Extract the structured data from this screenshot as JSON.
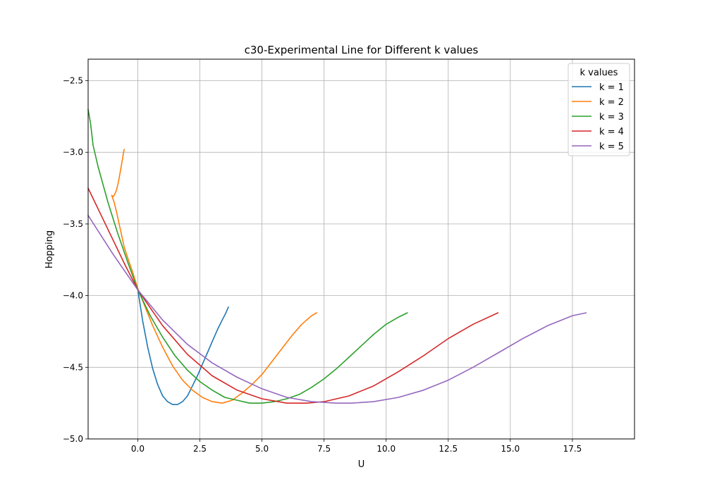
{
  "chart_data": {
    "type": "line",
    "title": "c30-Experimental Line for Different k values",
    "xlabel": "U",
    "ylabel": "Hopping",
    "xlim": [
      -2.0,
      20.0
    ],
    "ylim": [
      -5.0,
      -2.35
    ],
    "xticks": [
      "0.0",
      "2.5",
      "5.0",
      "7.5",
      "10.0",
      "12.5",
      "15.0",
      "17.5"
    ],
    "yticks": [
      "−2.5",
      "−3.0",
      "−3.5",
      "−4.0",
      "−4.5",
      "−5.0"
    ],
    "grid": true,
    "legend": {
      "title": "k values",
      "placement": "top-right"
    },
    "series": [
      {
        "name": "k = 1",
        "color": "#1f77b4",
        "x": [
          0.0,
          0.2,
          0.4,
          0.6,
          0.8,
          1.0,
          1.2,
          1.4,
          1.6,
          1.7,
          1.8,
          2.0,
          2.2,
          2.4,
          2.6,
          2.8,
          3.0,
          3.2,
          3.4,
          3.55,
          3.62,
          3.65
        ],
        "y": [
          -3.96,
          -4.18,
          -4.36,
          -4.51,
          -4.62,
          -4.7,
          -4.74,
          -4.76,
          -4.76,
          -4.75,
          -4.74,
          -4.7,
          -4.63,
          -4.56,
          -4.48,
          -4.4,
          -4.32,
          -4.24,
          -4.17,
          -4.12,
          -4.09,
          -4.08
        ]
      },
      {
        "name": "k = 2",
        "color": "#ff7f0e",
        "x": [
          -0.55,
          -0.6,
          -0.65,
          -0.7,
          -0.75,
          -0.8,
          -0.85,
          -0.9,
          -0.95,
          -1.0,
          -1.05,
          -0.95,
          -0.85,
          -0.75,
          -0.65,
          -0.55,
          -0.4,
          -0.2,
          0.0,
          0.3,
          0.6,
          1.0,
          1.4,
          1.8,
          2.2,
          2.6,
          3.0,
          3.4,
          3.8,
          4.2,
          4.6,
          5.0,
          5.4,
          5.8,
          6.2,
          6.6,
          7.0,
          7.2
        ],
        "y": [
          -2.98,
          -3.03,
          -3.08,
          -3.13,
          -3.18,
          -3.22,
          -3.26,
          -3.28,
          -3.3,
          -3.31,
          -3.3,
          -3.35,
          -3.42,
          -3.5,
          -3.58,
          -3.66,
          -3.74,
          -3.84,
          -3.95,
          -4.08,
          -4.21,
          -4.36,
          -4.49,
          -4.59,
          -4.66,
          -4.71,
          -4.74,
          -4.75,
          -4.73,
          -4.68,
          -4.62,
          -4.55,
          -4.46,
          -4.37,
          -4.28,
          -4.2,
          -4.14,
          -4.12
        ]
      },
      {
        "name": "k = 3",
        "color": "#2ca02c",
        "x": [
          -2.0,
          -1.9,
          -1.8,
          -1.6,
          -1.2,
          -0.8,
          -0.4,
          0.0,
          0.5,
          1.0,
          1.5,
          2.0,
          2.5,
          3.0,
          3.5,
          4.0,
          4.5,
          5.0,
          5.5,
          6.0,
          6.5,
          7.0,
          7.5,
          8.0,
          8.5,
          9.0,
          9.5,
          10.0,
          10.5,
          10.85
        ],
        "y": [
          -2.7,
          -2.8,
          -2.95,
          -3.1,
          -3.35,
          -3.57,
          -3.77,
          -3.96,
          -4.14,
          -4.29,
          -4.42,
          -4.52,
          -4.6,
          -4.66,
          -4.71,
          -4.73,
          -4.75,
          -4.75,
          -4.74,
          -4.72,
          -4.69,
          -4.64,
          -4.58,
          -4.51,
          -4.43,
          -4.35,
          -4.27,
          -4.2,
          -4.15,
          -4.12
        ]
      },
      {
        "name": "k = 4",
        "color": "#d62728",
        "x": [
          -2.0,
          -1.5,
          -1.0,
          -0.5,
          0.0,
          1.0,
          2.0,
          3.0,
          4.0,
          5.0,
          6.0,
          6.8,
          7.5,
          8.5,
          9.5,
          10.5,
          11.5,
          12.5,
          13.5,
          14.5
        ],
        "y": [
          -3.25,
          -3.43,
          -3.61,
          -3.79,
          -3.96,
          -4.21,
          -4.41,
          -4.56,
          -4.66,
          -4.72,
          -4.75,
          -4.75,
          -4.74,
          -4.7,
          -4.63,
          -4.53,
          -4.42,
          -4.3,
          -4.2,
          -4.12
        ]
      },
      {
        "name": "k = 5",
        "color": "#9467bd",
        "x": [
          -2.0,
          -1.0,
          0.0,
          1.0,
          2.0,
          3.0,
          4.0,
          5.0,
          6.0,
          7.0,
          8.0,
          8.6,
          9.5,
          10.5,
          11.5,
          12.5,
          13.5,
          14.5,
          15.5,
          16.5,
          17.5,
          18.05
        ],
        "y": [
          -3.44,
          -3.71,
          -3.96,
          -4.17,
          -4.34,
          -4.47,
          -4.57,
          -4.65,
          -4.71,
          -4.74,
          -4.75,
          -4.75,
          -4.74,
          -4.71,
          -4.66,
          -4.59,
          -4.5,
          -4.4,
          -4.3,
          -4.21,
          -4.14,
          -4.12
        ]
      }
    ]
  }
}
